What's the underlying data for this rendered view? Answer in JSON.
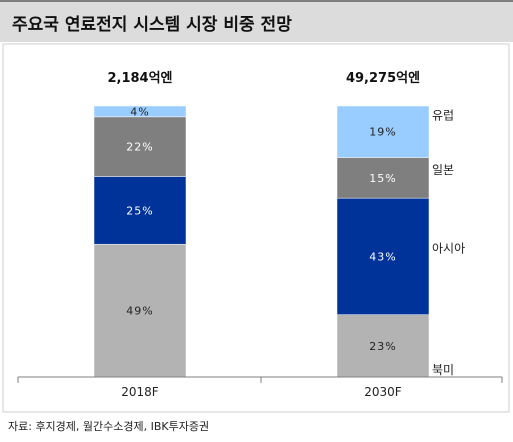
{
  "title": "주요국 연료전지 시스템 시장 비중 전망",
  "source": "자료: 후지경제, 월간수소경제, IBK투자증권",
  "chart_data": {
    "type": "bar",
    "stacked": true,
    "percent": true,
    "categories": [
      "2018F",
      "2030F"
    ],
    "totals": [
      "2,184억엔",
      "49,275억엔"
    ],
    "ylim": [
      0,
      100
    ],
    "series": [
      {
        "name": "북미",
        "values": [
          49,
          23
        ],
        "labels": [
          "49%",
          "23%"
        ],
        "color": "#b3b3b3"
      },
      {
        "name": "아시아",
        "values": [
          25,
          43
        ],
        "labels": [
          "25%",
          "43%"
        ],
        "color": "#003399"
      },
      {
        "name": "일본",
        "values": [
          22,
          15
        ],
        "labels": [
          "22%",
          "15%"
        ],
        "color": "#7f7f7f"
      },
      {
        "name": "유럽",
        "values": [
          4,
          19
        ],
        "labels": [
          "4%",
          "19%"
        ],
        "color": "#99ccff"
      }
    ],
    "legend": "right-inline"
  }
}
